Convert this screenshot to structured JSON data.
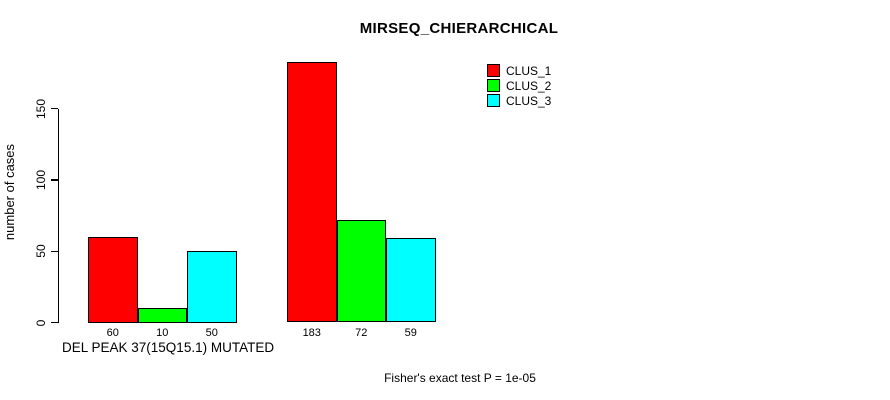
{
  "chart_data": {
    "type": "bar",
    "title": "MIRSEQ_CHIERARCHICAL",
    "ylabel": "number of cases",
    "xlabel": "DEL PEAK 37(15Q15.1) MUTATED",
    "annotation": "Fisher's exact test P = 1e-05",
    "ylim": [
      0,
      150
    ],
    "yticks": [
      0,
      50,
      100,
      150
    ],
    "grid": false,
    "legend_position": "top-right",
    "show_value_labels": true,
    "series": [
      {
        "name": "CLUS_1",
        "color": "#ff0000",
        "values": [
          60,
          183
        ]
      },
      {
        "name": "CLUS_2",
        "color": "#00ff00",
        "values": [
          10,
          72
        ]
      },
      {
        "name": "CLUS_3",
        "color": "#00ffff",
        "values": [
          50,
          59
        ]
      }
    ]
  },
  "colors": {
    "background": "#ffffff",
    "axis": "#000000",
    "text": "#000000"
  }
}
